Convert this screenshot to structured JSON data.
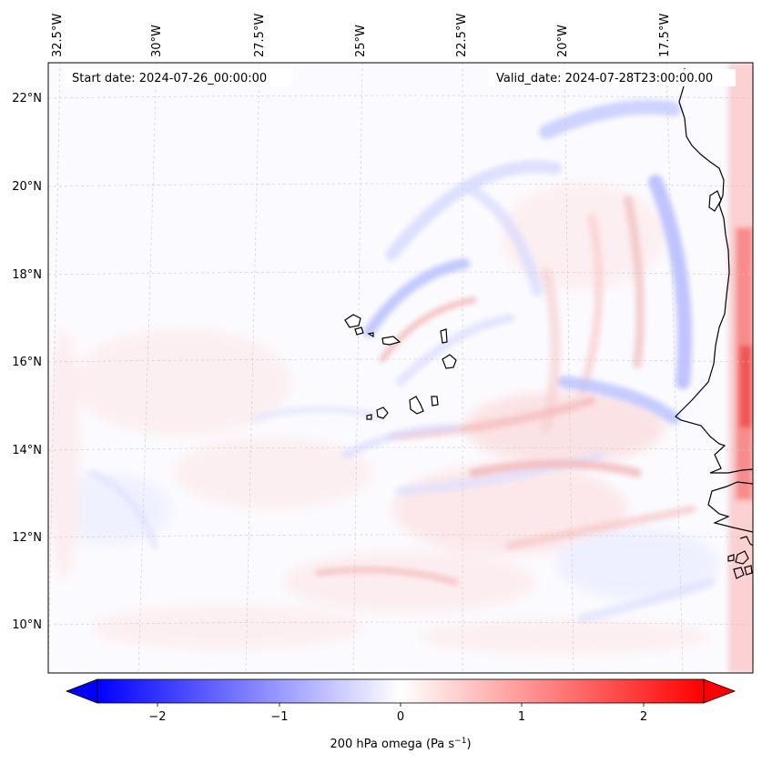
{
  "map": {
    "header": {
      "start_date": "Start date: 2024-07-26_00:00:00",
      "valid_date": "Valid_date: 2024-07-28T23:00:00.00"
    },
    "lon_labels": [
      "32.5°W",
      "30°W",
      "27.5°W",
      "25°W",
      "22.5°W",
      "20°W",
      "17.5°W"
    ],
    "lat_labels": [
      "22°N",
      "20°N",
      "18°N",
      "16°N",
      "14°N",
      "12°N",
      "10°N"
    ],
    "field": {
      "variable": "200 hPa omega",
      "units": "Pa s^-1",
      "min": -2.5,
      "max": 2.5
    },
    "colorbar": {
      "label_main": "200 hPa omega (Pa s",
      "label_exp": "−1",
      "label_close": ")",
      "ticks": [
        "−2",
        "−1",
        "0",
        "1",
        "2"
      ],
      "tick_values": [
        -2,
        -1,
        0,
        1,
        2
      ],
      "color_negative": "#0000ff",
      "color_zero": "#ffffff",
      "color_positive": "#ff0000"
    }
  }
}
